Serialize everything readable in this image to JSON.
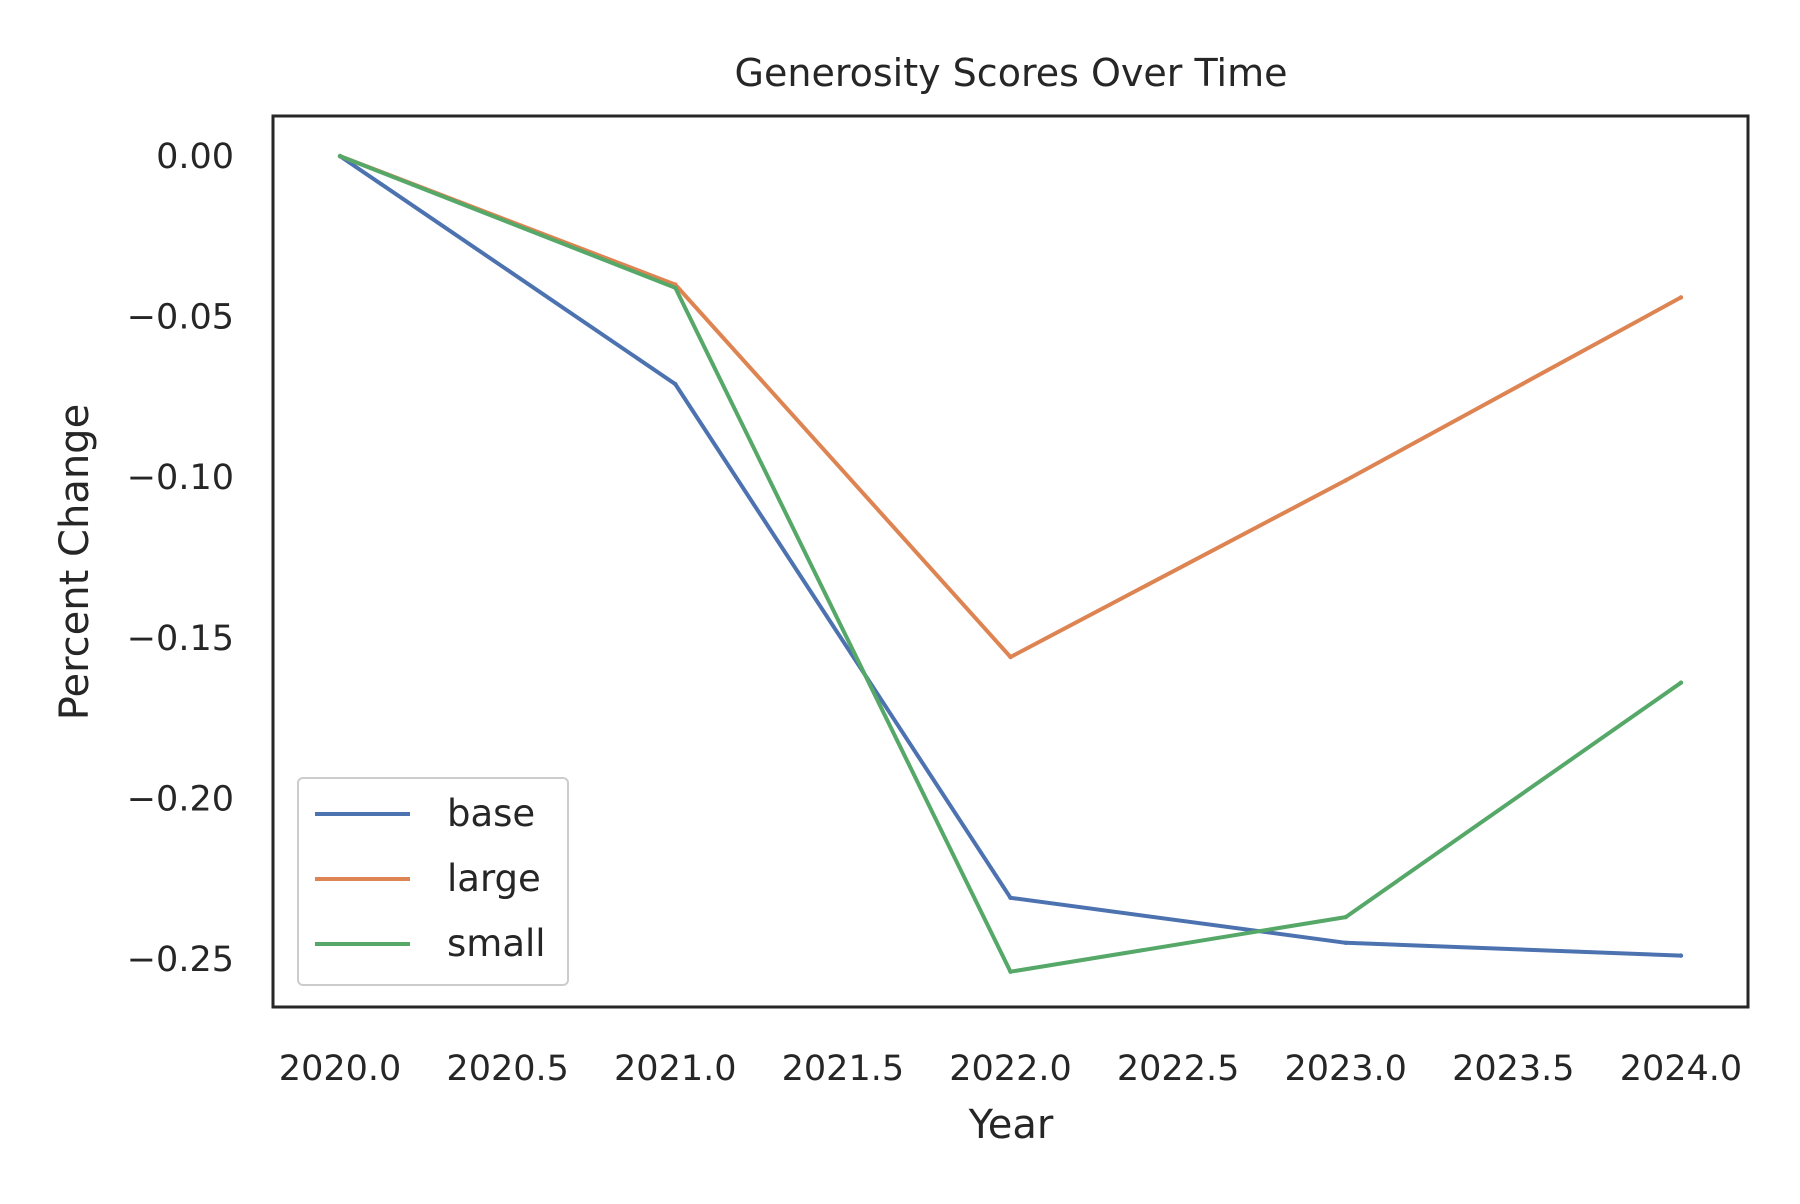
{
  "chart_data": {
    "type": "line",
    "title": "Generosity Scores Over Time",
    "xlabel": "Year",
    "ylabel": "Percent Change",
    "x": [
      2020,
      2021,
      2022,
      2023,
      2024
    ],
    "xlim": [
      2019.8,
      2024.2
    ],
    "ylim": [
      -0.265,
      0.0125
    ],
    "xticks": [
      2020.0,
      2020.5,
      2021.0,
      2021.5,
      2022.0,
      2022.5,
      2023.0,
      2023.5,
      2024.0
    ],
    "xtick_labels": [
      "2020.0",
      "2020.5",
      "2021.0",
      "2021.5",
      "2022.0",
      "2022.5",
      "2023.0",
      "2023.5",
      "2024.0"
    ],
    "yticks": [
      0.0,
      -0.05,
      -0.1,
      -0.15,
      -0.2,
      -0.25
    ],
    "ytick_labels": [
      "0.00",
      "−0.05",
      "−0.10",
      "−0.15",
      "−0.20",
      "−0.25"
    ],
    "grid": false,
    "legend_position": "lower-left",
    "series": [
      {
        "name": "base",
        "color": "#4c72b0",
        "values": [
          0.0,
          -0.071,
          -0.231,
          -0.245,
          -0.249
        ]
      },
      {
        "name": "large",
        "color": "#dd8452",
        "values": [
          0.0,
          -0.04,
          -0.156,
          -0.101,
          -0.044
        ]
      },
      {
        "name": "small",
        "color": "#55a868",
        "values": [
          0.0,
          -0.041,
          -0.254,
          -0.237,
          -0.164
        ]
      }
    ]
  }
}
